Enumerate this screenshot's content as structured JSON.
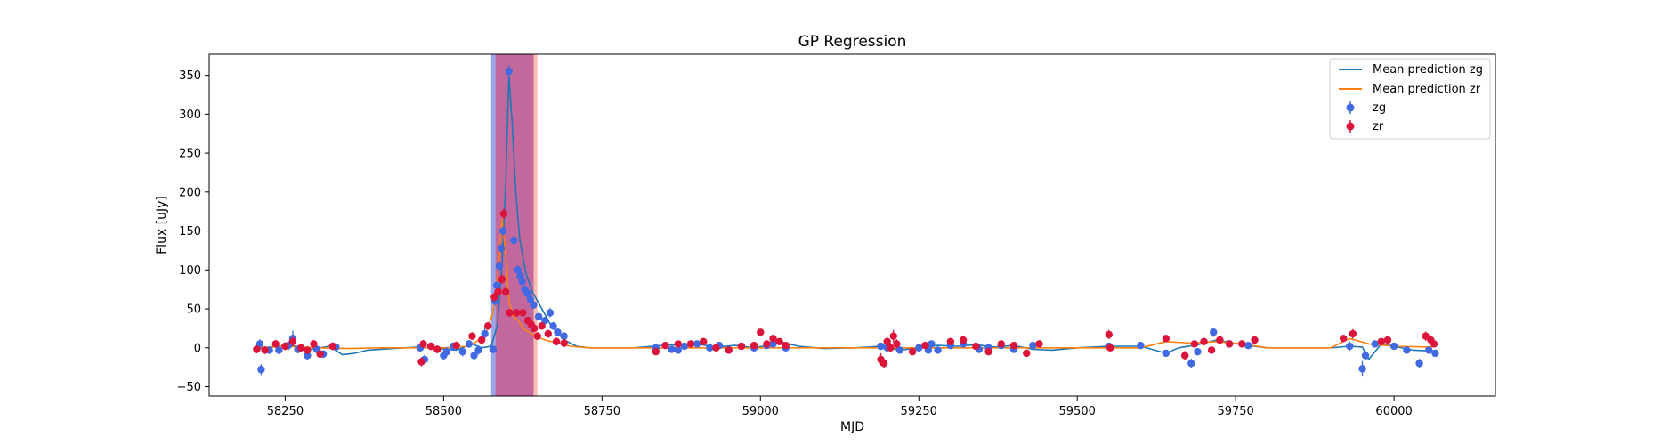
{
  "chart_data": {
    "type": "scatter",
    "title": "GP Regression",
    "xlabel": "MJD",
    "ylabel": "Flux [uJy]",
    "xlim": [
      58130,
      60160
    ],
    "ylim": [
      -62,
      377
    ],
    "xticks": [
      58250,
      58500,
      58750,
      59000,
      59250,
      59500,
      59750,
      60000
    ],
    "yticks": [
      -50,
      0,
      50,
      100,
      150,
      200,
      250,
      300,
      350
    ],
    "colors": {
      "zg_points": "#4169e1",
      "zr_points": "#dc143c",
      "mean_zg": "#1f77b4",
      "mean_zr": "#ff7f0e",
      "band_zg": "#4a5bd6",
      "band_zr": "#f28a7a",
      "band_overlap": "#c1609a"
    },
    "shaded_regions": [
      {
        "name": "zg",
        "x_start": 58575,
        "x_end": 58642
      },
      {
        "name": "zr",
        "x_start": 58582,
        "x_end": 58648
      }
    ],
    "series": [
      {
        "name": "Mean prediction zg",
        "kind": "line",
        "x": [
          58205,
          58230,
          58260,
          58290,
          58320,
          58340,
          58360,
          58380,
          58420,
          58460,
          58490,
          58520,
          58545,
          58560,
          58575,
          58585,
          58592,
          58598,
          58603,
          58608,
          58614,
          58620,
          58630,
          58640,
          58655,
          58670,
          58690,
          58710,
          58730,
          58760,
          58800,
          58830,
          58860,
          58880,
          58900,
          58930,
          58960,
          58990,
          59010,
          59030,
          59060,
          59100,
          59150,
          59190,
          59220,
          59250,
          59280,
          59310,
          59340,
          59370,
          59400,
          59430,
          59460,
          59500,
          59550,
          59600,
          59640,
          59660,
          59690,
          59720,
          59760,
          59800,
          59850,
          59900,
          59930,
          59950,
          59960,
          59980,
          60000,
          60030,
          60060
        ],
        "y": [
          -2,
          1,
          3,
          -2,
          2,
          -9,
          -7,
          -3,
          -1,
          1,
          -1,
          -3,
          5,
          0,
          2,
          30,
          105,
          210,
          350,
          290,
          200,
          140,
          95,
          72,
          50,
          28,
          10,
          2,
          0,
          0,
          0,
          2,
          4,
          2,
          5,
          1,
          3,
          0,
          3,
          8,
          2,
          -1,
          0,
          2,
          -3,
          0,
          3,
          2,
          4,
          1,
          3,
          -2,
          -3,
          0,
          2,
          2,
          -7,
          0,
          4,
          10,
          4,
          0,
          0,
          0,
          2,
          1,
          -15,
          5,
          2,
          -3,
          -4
        ]
      },
      {
        "name": "Mean prediction zr",
        "kind": "line",
        "x": [
          58205,
          58250,
          58300,
          58350,
          58400,
          58460,
          58500,
          58540,
          58565,
          58578,
          58585,
          58592,
          58598,
          58603,
          58610,
          58618,
          58625,
          58635,
          58645,
          58660,
          58680,
          58700,
          58730,
          58770,
          58830,
          58880,
          58950,
          59000,
          59050,
          59100,
          59190,
          59230,
          59300,
          59350,
          59400,
          59450,
          59500,
          59550,
          59600,
          59640,
          59680,
          59720,
          59760,
          59800,
          59850,
          59900,
          59930,
          59960,
          60000,
          60060
        ],
        "y": [
          0,
          2,
          0,
          -1,
          0,
          0,
          0,
          2,
          15,
          45,
          90,
          165,
          120,
          60,
          40,
          35,
          25,
          20,
          15,
          10,
          6,
          2,
          0,
          0,
          0,
          0,
          0,
          0,
          0,
          0,
          0,
          0,
          0,
          0,
          0,
          0,
          0,
          0,
          0,
          8,
          6,
          8,
          5,
          0,
          0,
          0,
          12,
          5,
          2,
          1
        ]
      },
      {
        "name": "zg",
        "kind": "errorbar",
        "x": [
          58210,
          58212,
          58225,
          58240,
          58255,
          58262,
          58270,
          58285,
          58300,
          58310,
          58330,
          58463,
          58470,
          58480,
          58500,
          58505,
          58515,
          58530,
          58540,
          58548,
          58555,
          58565,
          58578,
          58581,
          58584,
          58588,
          58591,
          58594,
          58603,
          58611,
          58617,
          58621,
          58624,
          58628,
          58632,
          58637,
          58642,
          58650,
          58660,
          58668,
          58673,
          58680,
          58690,
          58835,
          58860,
          58870,
          58880,
          58900,
          58920,
          58935,
          58950,
          58970,
          58990,
          59010,
          59020,
          59040,
          59190,
          59200,
          59220,
          59250,
          59265,
          59270,
          59280,
          59300,
          59320,
          59345,
          59360,
          59380,
          59400,
          59430,
          59550,
          59600,
          59640,
          59680,
          59690,
          59715,
          59740,
          59770,
          59930,
          59950,
          59955,
          59970,
          60000,
          60020,
          60040,
          60055,
          60065
        ],
        "y": [
          5,
          -28,
          -3,
          -3,
          3,
          12,
          -2,
          -10,
          -2,
          -8,
          1,
          0,
          -15,
          2,
          -10,
          -5,
          2,
          -5,
          5,
          -10,
          -3,
          18,
          -2,
          60,
          80,
          105,
          128,
          150,
          355,
          138,
          100,
          92,
          85,
          75,
          70,
          62,
          55,
          40,
          35,
          45,
          28,
          20,
          15,
          0,
          -2,
          -3,
          2,
          5,
          0,
          3,
          -3,
          2,
          0,
          3,
          5,
          0,
          2,
          0,
          -3,
          0,
          -3,
          5,
          -3,
          3,
          5,
          -2,
          0,
          3,
          -2,
          3,
          2,
          3,
          -7,
          -20,
          -5,
          20,
          5,
          3,
          2,
          -27,
          -10,
          5,
          2,
          -3,
          -20,
          -3,
          -7
        ],
        "yerr": [
          6,
          7,
          5,
          5,
          6,
          10,
          5,
          5,
          5,
          5,
          5,
          5,
          6,
          5,
          6,
          6,
          5,
          6,
          5,
          5,
          6,
          8,
          5,
          6,
          5,
          6,
          6,
          6,
          8,
          6,
          6,
          5,
          5,
          5,
          5,
          5,
          5,
          5,
          5,
          6,
          5,
          5,
          5,
          4,
          4,
          4,
          4,
          4,
          4,
          4,
          4,
          4,
          4,
          4,
          4,
          4,
          4,
          4,
          4,
          4,
          4,
          4,
          4,
          4,
          4,
          4,
          4,
          4,
          4,
          4,
          4,
          4,
          4,
          6,
          4,
          6,
          4,
          4,
          6,
          10,
          6,
          4,
          4,
          4,
          6,
          4,
          4
        ]
      },
      {
        "name": "zr",
        "kind": "errorbar",
        "x": [
          58205,
          58218,
          58235,
          58250,
          58262,
          58275,
          58285,
          58295,
          58305,
          58325,
          58465,
          58468,
          58480,
          58490,
          58520,
          58545,
          58560,
          58570,
          58580,
          58586,
          58592,
          58595,
          58598,
          58604,
          58615,
          58625,
          58633,
          58638,
          58643,
          58648,
          58655,
          58665,
          58678,
          58690,
          58835,
          58850,
          58870,
          58890,
          58910,
          58930,
          58950,
          58970,
          58990,
          59000,
          59010,
          59020,
          59030,
          59040,
          59190,
          59195,
          59200,
          59205,
          59210,
          59215,
          59240,
          59260,
          59300,
          59320,
          59340,
          59360,
          59380,
          59400,
          59420,
          59440,
          59550,
          59552,
          59640,
          59670,
          59685,
          59700,
          59712,
          59725,
          59740,
          59760,
          59780,
          59920,
          59935,
          59980,
          59990,
          60050,
          60058,
          60063
        ],
        "y": [
          -2,
          -3,
          5,
          2,
          8,
          0,
          -3,
          5,
          -8,
          2,
          -18,
          5,
          2,
          -2,
          3,
          15,
          10,
          28,
          65,
          72,
          88,
          172,
          72,
          45,
          45,
          45,
          35,
          30,
          25,
          15,
          28,
          18,
          8,
          6,
          -5,
          3,
          5,
          5,
          8,
          0,
          -3,
          2,
          3,
          20,
          5,
          12,
          8,
          3,
          -15,
          -20,
          8,
          0,
          15,
          5,
          -5,
          3,
          8,
          10,
          2,
          -5,
          5,
          3,
          -7,
          5,
          17,
          0,
          12,
          -10,
          5,
          8,
          -3,
          10,
          5,
          5,
          10,
          12,
          18,
          8,
          10,
          15,
          10,
          5
        ],
        "yerr": [
          5,
          5,
          5,
          5,
          6,
          5,
          5,
          5,
          5,
          5,
          6,
          5,
          5,
          5,
          5,
          5,
          5,
          5,
          6,
          6,
          6,
          7,
          6,
          5,
          5,
          5,
          5,
          5,
          5,
          5,
          5,
          5,
          5,
          5,
          4,
          4,
          4,
          4,
          4,
          4,
          4,
          4,
          4,
          4,
          4,
          4,
          4,
          4,
          8,
          6,
          6,
          6,
          8,
          6,
          4,
          4,
          4,
          4,
          4,
          4,
          4,
          4,
          4,
          4,
          6,
          4,
          4,
          6,
          4,
          4,
          4,
          4,
          4,
          4,
          4,
          4,
          6,
          4,
          4,
          6,
          4,
          4
        ]
      }
    ],
    "legend": {
      "position": "top-right",
      "entries": [
        {
          "label": "Mean prediction zg",
          "marker": "line"
        },
        {
          "label": "Mean prediction zr",
          "marker": "line"
        },
        {
          "label": "zg",
          "marker": "errorbar"
        },
        {
          "label": "zr",
          "marker": "errorbar"
        }
      ]
    }
  }
}
